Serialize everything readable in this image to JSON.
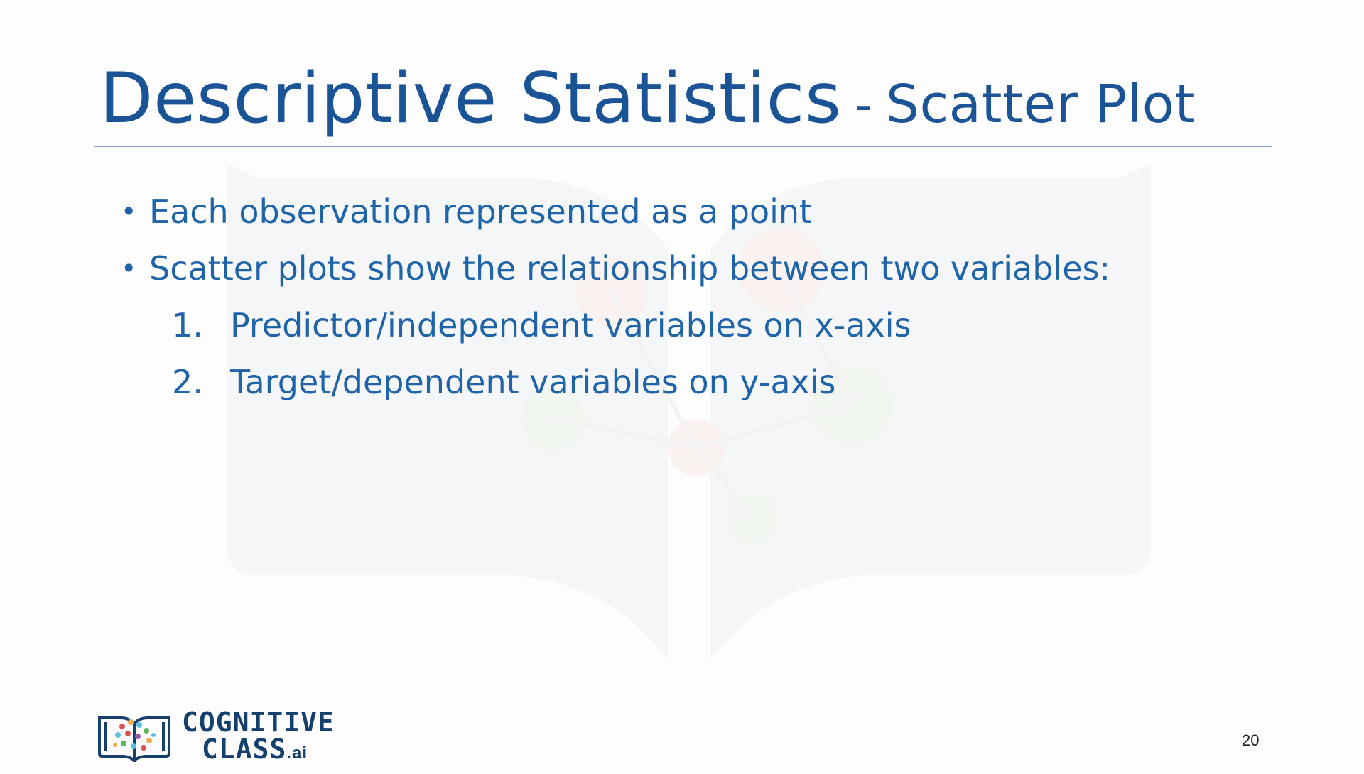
{
  "slide": {
    "title_main": "Descriptive Statistics",
    "title_separator": "-",
    "title_sub": "Scatter Plot",
    "bullets": [
      "Each observation represented as a point",
      "Scatter plots show the relationship between two variables:"
    ],
    "numbered_items": [
      {
        "number": "1.",
        "text": "Predictor/independent variables on x-axis"
      },
      {
        "number": "2.",
        "text": "Target/dependent variables on y-axis"
      }
    ],
    "page_number": "20"
  },
  "logo": {
    "line1": "COGNITIVE",
    "line2": "CLASS",
    "suffix": ".ai"
  },
  "colors": {
    "title": "#1b5496",
    "body_text": "#1f63a8",
    "rule": "#7f98c4",
    "logo_text": "#15406d"
  }
}
